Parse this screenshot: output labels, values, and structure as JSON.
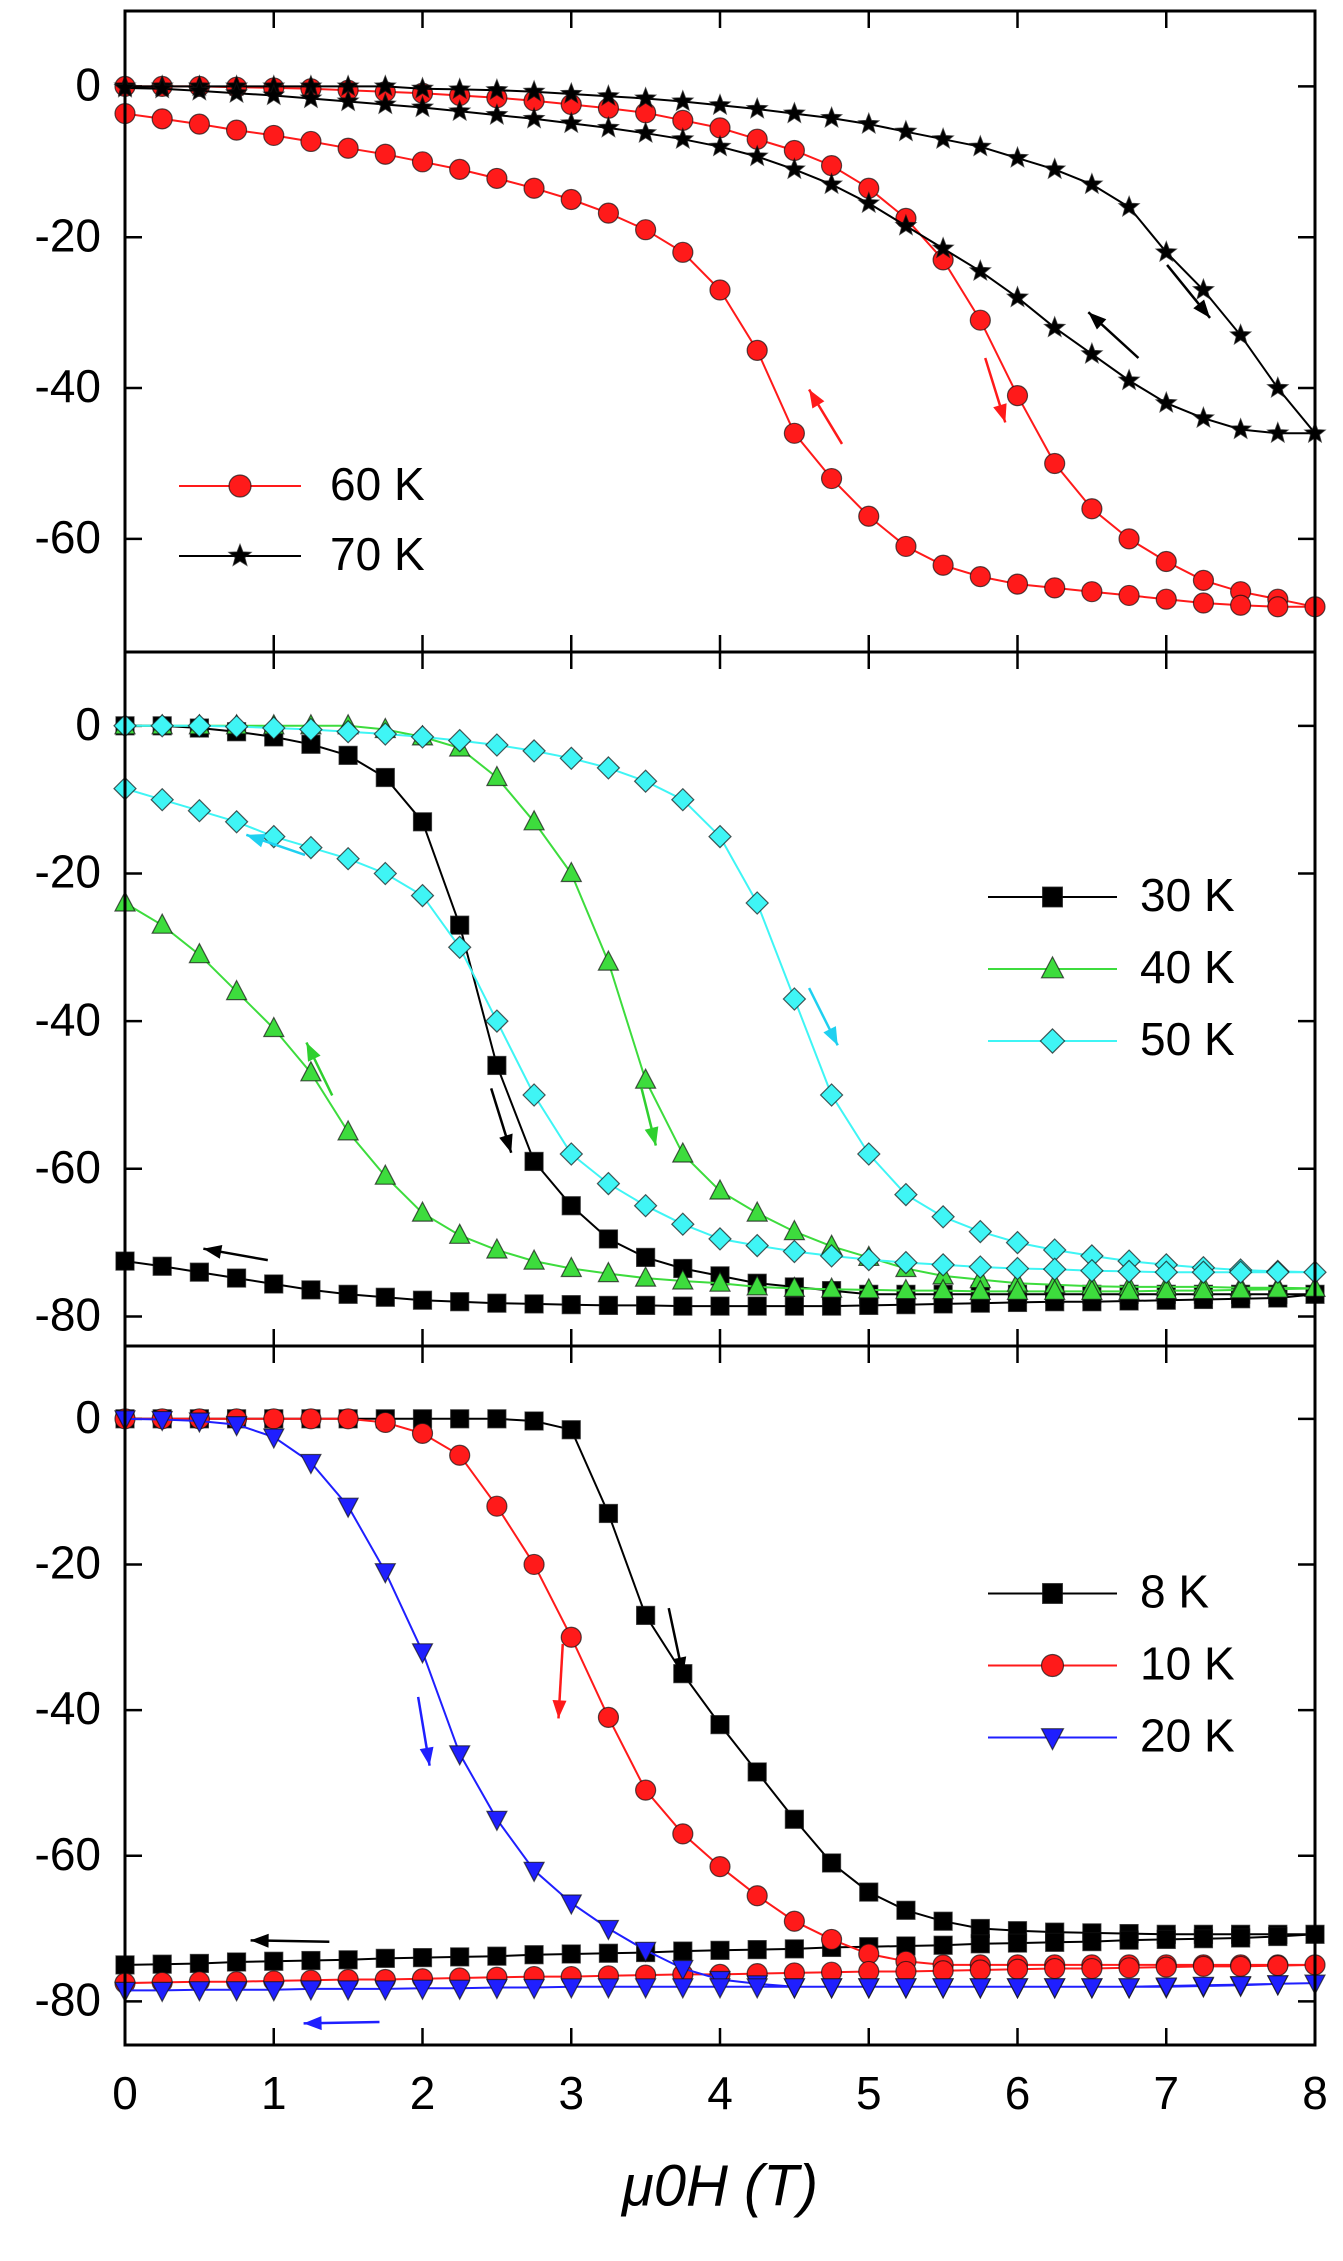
{
  "chart_data": [
    {
      "type": "line",
      "xlim": [
        0,
        8
      ],
      "xticks": [
        0,
        1,
        2,
        3,
        4,
        5,
        6,
        7,
        8
      ],
      "ylim": [
        -75,
        10
      ],
      "yticks": [
        0,
        -20,
        -40,
        -60
      ],
      "legend": "lower left",
      "x": [
        0,
        0.25,
        0.5,
        0.75,
        1,
        1.25,
        1.5,
        1.75,
        2,
        2.25,
        2.5,
        2.75,
        3,
        3.25,
        3.5,
        3.75,
        4,
        4.25,
        4.5,
        4.75,
        5,
        5.25,
        5.5,
        5.75,
        6,
        6.25,
        6.5,
        6.75,
        7,
        7.25,
        7.5,
        7.75,
        8,
        7.75,
        7.5,
        7.25,
        7,
        6.75,
        6.5,
        6.25,
        6,
        5.75,
        5.5,
        5.25,
        5,
        4.75,
        4.5,
        4.25,
        4,
        3.75,
        3.5,
        3.25,
        3,
        2.75,
        2.5,
        2.25,
        2,
        1.75,
        1.5,
        1.25,
        1,
        0.75,
        0.5,
        0.25,
        0
      ],
      "series": [
        {
          "name": "60 K",
          "color": "#ff1a1a",
          "marker": "circle",
          "values": [
            0,
            0,
            0,
            -0.1,
            -0.2,
            -0.3,
            -0.5,
            -0.7,
            -0.9,
            -1.2,
            -1.5,
            -1.9,
            -2.4,
            -2.9,
            -3.5,
            -4.5,
            -5.5,
            -7,
            -8.5,
            -10.5,
            -13.5,
            -17.5,
            -23,
            -31,
            -41,
            -50,
            -56,
            -60,
            -63,
            -65.5,
            -67,
            -68,
            -69,
            -69,
            -68.8,
            -68.5,
            -68,
            -67.5,
            -67,
            -66.5,
            -66,
            -65,
            -63.5,
            -61,
            -57,
            -52,
            -46,
            -35,
            -27,
            -22,
            -19,
            -16.8,
            -15,
            -13.5,
            -12.2,
            -11,
            -10,
            -9,
            -8.2,
            -7.3,
            -6.5,
            -5.8,
            -5,
            -4.3,
            -3.6
          ]
        },
        {
          "name": "70 K",
          "color": "#000000",
          "marker": "star",
          "values": [
            0,
            0,
            0,
            0,
            0,
            0,
            0,
            0,
            -0.3,
            -0.4,
            -0.5,
            -0.7,
            -1,
            -1.3,
            -1.6,
            -2,
            -2.5,
            -3,
            -3.6,
            -4.2,
            -5,
            -6,
            -7,
            -8,
            -9.5,
            -11,
            -13,
            -16,
            -22,
            -27,
            -33,
            -40,
            -46,
            -46,
            -45.5,
            -44,
            -42,
            -39,
            -35.5,
            -32,
            -28,
            -24.5,
            -21.5,
            -18.5,
            -15.5,
            -13,
            -11,
            -9.3,
            -8,
            -7,
            -6.2,
            -5.5,
            -4.9,
            -4.3,
            -3.8,
            -3.3,
            -2.8,
            -2.4,
            -2,
            -1.6,
            -1.2,
            -0.9,
            -0.6,
            -0.3,
            -0.2
          ]
        }
      ]
    },
    {
      "type": "line",
      "xlim": [
        0,
        8
      ],
      "xticks": [
        0,
        1,
        2,
        3,
        4,
        5,
        6,
        7,
        8
      ],
      "ylim": [
        -84,
        10
      ],
      "yticks": [
        0,
        -20,
        -40,
        -60,
        -80
      ],
      "legend": "center right",
      "x": [
        0,
        0.25,
        0.5,
        0.75,
        1,
        1.25,
        1.5,
        1.75,
        2,
        2.25,
        2.5,
        2.75,
        3,
        3.25,
        3.5,
        3.75,
        4,
        4.25,
        4.5,
        4.75,
        5,
        5.25,
        5.5,
        5.75,
        6,
        6.25,
        6.5,
        6.75,
        7,
        7.25,
        7.5,
        7.75,
        8,
        7.75,
        7.5,
        7.25,
        7,
        6.75,
        6.5,
        6.25,
        6,
        5.75,
        5.5,
        5.25,
        5,
        4.75,
        4.5,
        4.25,
        4,
        3.75,
        3.5,
        3.25,
        3,
        2.75,
        2.5,
        2.25,
        2,
        1.75,
        1.5,
        1.25,
        1,
        0.75,
        0.5,
        0.25,
        0
      ],
      "series": [
        {
          "name": "30 K",
          "color": "#000000",
          "marker": "square",
          "values": [
            0,
            0,
            -0.3,
            -0.8,
            -1.5,
            -2.5,
            -4,
            -7,
            -13,
            -27,
            -46,
            -59,
            -65,
            -69.5,
            -72,
            -73.5,
            -74.5,
            -75.5,
            -76,
            -76.5,
            -77,
            -77,
            -77,
            -77,
            -77,
            -77,
            -77,
            -77,
            -77,
            -77,
            -77,
            -77,
            -77,
            -77.5,
            -77.6,
            -77.7,
            -77.8,
            -77.9,
            -78,
            -78,
            -78.1,
            -78.2,
            -78.3,
            -78.4,
            -78.5,
            -78.6,
            -78.6,
            -78.6,
            -78.6,
            -78.6,
            -78.5,
            -78.5,
            -78.4,
            -78.3,
            -78.2,
            -78,
            -77.8,
            -77.4,
            -77,
            -76.4,
            -75.6,
            -74.8,
            -74,
            -73.2,
            -72.5
          ]
        },
        {
          "name": "40 K",
          "color": "#3ddc3d",
          "marker": "triangle-up",
          "values": [
            0,
            0,
            0,
            0,
            0,
            0,
            0,
            -0.5,
            -1.5,
            -3,
            -7,
            -13,
            -20,
            -32,
            -48,
            -58,
            -63,
            -66,
            -68.5,
            -70.5,
            -72,
            -73.5,
            -74.5,
            -75,
            -75.5,
            -75.7,
            -75.9,
            -76,
            -76,
            -76,
            -76.1,
            -76.1,
            -76.2,
            -76.3,
            -76.4,
            -76.5,
            -76.5,
            -76.6,
            -76.6,
            -76.6,
            -76.6,
            -76.6,
            -76.5,
            -76.5,
            -76.4,
            -76.3,
            -76.2,
            -76,
            -75.5,
            -75.2,
            -74.8,
            -74.2,
            -73.5,
            -72.5,
            -71,
            -69,
            -66,
            -61,
            -55,
            -47,
            -41,
            -36,
            -31,
            -27,
            -24
          ]
        },
        {
          "name": "50 K",
          "color": "#3ff5f5",
          "marker": "diamond",
          "values": [
            0,
            0,
            0,
            -0.1,
            -0.3,
            -0.5,
            -0.8,
            -1.1,
            -1.5,
            -2,
            -2.6,
            -3.4,
            -4.4,
            -5.7,
            -7.5,
            -10,
            -15,
            -24,
            -37,
            -50,
            -58,
            -63.5,
            -66.5,
            -68.5,
            -70,
            -71,
            -71.8,
            -72.5,
            -73,
            -73.4,
            -73.7,
            -73.9,
            -74,
            -74,
            -74,
            -74,
            -74,
            -73.9,
            -73.8,
            -73.6,
            -73.5,
            -73.3,
            -73,
            -72.7,
            -72.3,
            -71.8,
            -71.2,
            -70.4,
            -69.5,
            -67.5,
            -65,
            -62,
            -58,
            -50,
            -40,
            -30,
            -23,
            -20,
            -18,
            -16.5,
            -15,
            -13,
            -11.5,
            -10,
            -8.5
          ]
        }
      ]
    },
    {
      "type": "line",
      "xlim": [
        0,
        8
      ],
      "xticks": [
        0,
        1,
        2,
        3,
        4,
        5,
        6,
        7,
        8
      ],
      "ylim": [
        -86,
        10
      ],
      "yticks": [
        0,
        -20,
        -40,
        -60,
        -80
      ],
      "legend": "center right",
      "xlabel": "μ0H (T)",
      "x": [
        0,
        0.25,
        0.5,
        0.75,
        1,
        1.25,
        1.5,
        1.75,
        2,
        2.25,
        2.5,
        2.75,
        3,
        3.25,
        3.5,
        3.75,
        4,
        4.25,
        4.5,
        4.75,
        5,
        5.25,
        5.5,
        5.75,
        6,
        6.25,
        6.5,
        6.75,
        7,
        7.25,
        7.5,
        7.75,
        8,
        7.75,
        7.5,
        7.25,
        7,
        6.75,
        6.5,
        6.25,
        6,
        5.75,
        5.5,
        5.25,
        5,
        4.75,
        4.5,
        4.25,
        4,
        3.75,
        3.5,
        3.25,
        3,
        2.75,
        2.5,
        2.25,
        2,
        1.75,
        1.5,
        1.25,
        1,
        0.75,
        0.5,
        0.25,
        0
      ],
      "series": [
        {
          "name": "8 K",
          "color": "#000000",
          "marker": "square",
          "values": [
            0,
            0,
            0,
            0,
            0,
            0,
            0,
            0,
            0,
            0,
            0,
            -0.3,
            -1.5,
            -13,
            -27,
            -35,
            -42,
            -48.5,
            -55,
            -61,
            -65,
            -67.5,
            -69,
            -70,
            -70.3,
            -70.5,
            -70.6,
            -70.7,
            -70.8,
            -70.8,
            -70.8,
            -70.8,
            -70.8,
            -71.1,
            -71.3,
            -71.4,
            -71.5,
            -71.6,
            -71.8,
            -71.9,
            -72,
            -72.1,
            -72.3,
            -72.4,
            -72.5,
            -72.6,
            -72.8,
            -72.9,
            -73,
            -73.1,
            -73.3,
            -73.4,
            -73.5,
            -73.6,
            -73.8,
            -73.9,
            -74,
            -74.1,
            -74.3,
            -74.4,
            -74.5,
            -74.6,
            -74.8,
            -74.9,
            -75
          ]
        },
        {
          "name": "10 K",
          "color": "#ff1a1a",
          "marker": "circle",
          "values": [
            0,
            0,
            0,
            0,
            0,
            0,
            0,
            -0.5,
            -2,
            -5,
            -12,
            -20,
            -30,
            -41,
            -51,
            -57,
            -61.5,
            -65.5,
            -69,
            -71.5,
            -73.5,
            -74.5,
            -75,
            -75,
            -75,
            -75,
            -75,
            -75,
            -75,
            -75,
            -75,
            -75,
            -75,
            -75.1,
            -75.2,
            -75.2,
            -75.3,
            -75.4,
            -75.5,
            -75.5,
            -75.6,
            -75.7,
            -75.8,
            -75.9,
            -75.9,
            -76,
            -76.1,
            -76.2,
            -76.3,
            -76.3,
            -76.4,
            -76.5,
            -76.6,
            -76.6,
            -76.7,
            -76.8,
            -76.9,
            -77,
            -77,
            -77.1,
            -77.2,
            -77.3,
            -77.3,
            -77.4,
            -77.5
          ]
        },
        {
          "name": "20 K",
          "color": "#1f1fff",
          "marker": "triangle-down",
          "values": [
            0,
            -0.1,
            -0.3,
            -0.8,
            -2.5,
            -6,
            -12,
            -21,
            -32,
            -46,
            -55,
            -62,
            -66.5,
            -70,
            -73,
            -75.5,
            -77,
            -77.6,
            -78,
            -78,
            -78,
            -78,
            -78,
            -78,
            -78,
            -78,
            -78,
            -78,
            -78,
            -77.9,
            -77.8,
            -77.6,
            -77.5,
            -77.6,
            -77.7,
            -77.8,
            -77.9,
            -78,
            -78,
            -78,
            -78,
            -78,
            -78,
            -78,
            -78,
            -78,
            -78,
            -78,
            -78,
            -78,
            -78,
            -78,
            -78,
            -78.1,
            -78.1,
            -78.2,
            -78.2,
            -78.3,
            -78.3,
            -78.3,
            -78.4,
            -78.4,
            -78.4,
            -78.5,
            -78.5
          ]
        }
      ]
    }
  ]
}
